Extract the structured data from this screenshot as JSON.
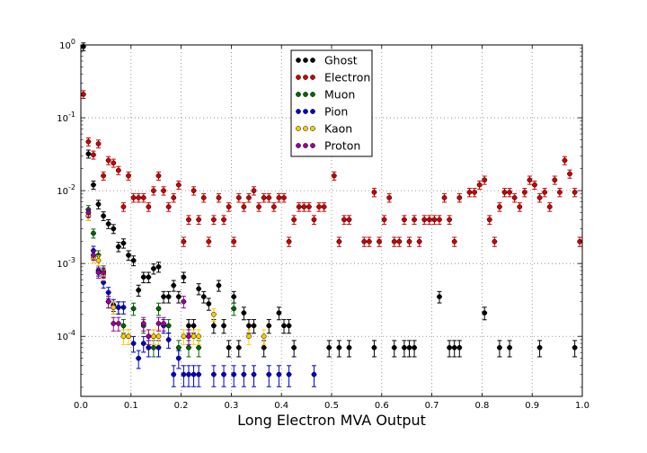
{
  "chart_data": {
    "type": "scatter",
    "title": "",
    "xlabel": "Long Electron MVA Output",
    "ylabel": "",
    "xlim": [
      0.0,
      1.0
    ],
    "ylim": [
      1.5e-05,
      1.0
    ],
    "yscale": "log",
    "grid": true,
    "legend_position": "top-center",
    "x_ticks": [
      "0.0",
      "0.1",
      "0.2",
      "0.3",
      "0.4",
      "0.5",
      "0.6",
      "0.7",
      "0.8",
      "0.9",
      "1.0"
    ],
    "y_ticks": [
      {
        "base": "10",
        "exp": "0",
        "value": 1
      },
      {
        "base": "10",
        "exp": "-1",
        "value": 0.1
      },
      {
        "base": "10",
        "exp": "-2",
        "value": 0.01
      },
      {
        "base": "10",
        "exp": "-3",
        "value": 0.001
      },
      {
        "base": "10",
        "exp": "-4",
        "value": 0.0001
      }
    ],
    "series": [
      {
        "name": "Ghost",
        "color": "#000000",
        "points": [
          [
            0.005,
            0.95
          ],
          [
            0.015,
            0.032
          ],
          [
            0.025,
            0.012
          ],
          [
            0.035,
            0.0065
          ],
          [
            0.045,
            0.0045
          ],
          [
            0.055,
            0.0035
          ],
          [
            0.065,
            0.003
          ],
          [
            0.075,
            0.0017
          ],
          [
            0.085,
            0.0019
          ],
          [
            0.095,
            0.0013
          ],
          [
            0.105,
            0.0011
          ],
          [
            0.115,
            0.00043
          ],
          [
            0.125,
            0.00065
          ],
          [
            0.135,
            0.00065
          ],
          [
            0.145,
            0.00085
          ],
          [
            0.155,
            0.0009
          ],
          [
            0.165,
            0.00035
          ],
          [
            0.175,
            0.00035
          ],
          [
            0.185,
            0.0005
          ],
          [
            0.195,
            0.00035
          ],
          [
            0.205,
            0.00065
          ],
          [
            0.215,
            0.00014
          ],
          [
            0.225,
            0.00014
          ],
          [
            0.235,
            0.00045
          ],
          [
            0.245,
            0.00035
          ],
          [
            0.255,
            0.00028
          ],
          [
            0.265,
            0.00014
          ],
          [
            0.275,
            0.0005
          ],
          [
            0.285,
            0.00014
          ],
          [
            0.295,
            7e-05
          ],
          [
            0.305,
            0.00035
          ],
          [
            0.315,
            7e-05
          ],
          [
            0.325,
            0.00021
          ],
          [
            0.335,
            0.00014
          ],
          [
            0.345,
            0.00014
          ],
          [
            0.365,
            7e-05
          ],
          [
            0.375,
            0.00014
          ],
          [
            0.395,
            0.00021
          ],
          [
            0.405,
            0.00014
          ],
          [
            0.415,
            0.00014
          ],
          [
            0.425,
            7e-05
          ],
          [
            0.495,
            7e-05
          ],
          [
            0.515,
            7e-05
          ],
          [
            0.535,
            7e-05
          ],
          [
            0.585,
            7e-05
          ],
          [
            0.625,
            7e-05
          ],
          [
            0.645,
            7e-05
          ],
          [
            0.655,
            7e-05
          ],
          [
            0.665,
            7e-05
          ],
          [
            0.715,
            0.00035
          ],
          [
            0.735,
            7e-05
          ],
          [
            0.745,
            7e-05
          ],
          [
            0.755,
            7e-05
          ],
          [
            0.805,
            0.00021
          ],
          [
            0.835,
            7e-05
          ],
          [
            0.855,
            7e-05
          ],
          [
            0.915,
            7e-05
          ],
          [
            0.985,
            7e-05
          ]
        ]
      },
      {
        "name": "Electron",
        "color": "#cc0000",
        "points": [
          [
            0.005,
            0.21
          ],
          [
            0.015,
            0.047
          ],
          [
            0.025,
            0.031
          ],
          [
            0.035,
            0.044
          ],
          [
            0.045,
            0.016
          ],
          [
            0.055,
            0.026
          ],
          [
            0.065,
            0.024
          ],
          [
            0.075,
            0.019
          ],
          [
            0.085,
            0.006
          ],
          [
            0.095,
            0.016
          ],
          [
            0.105,
            0.008
          ],
          [
            0.115,
            0.008
          ],
          [
            0.125,
            0.008
          ],
          [
            0.135,
            0.006
          ],
          [
            0.145,
            0.01
          ],
          [
            0.155,
            0.016
          ],
          [
            0.165,
            0.01
          ],
          [
            0.175,
            0.006
          ],
          [
            0.185,
            0.008
          ],
          [
            0.195,
            0.012
          ],
          [
            0.205,
            0.002
          ],
          [
            0.215,
            0.004
          ],
          [
            0.225,
            0.01
          ],
          [
            0.235,
            0.004
          ],
          [
            0.245,
            0.008
          ],
          [
            0.255,
            0.002
          ],
          [
            0.265,
            0.004
          ],
          [
            0.275,
            0.008
          ],
          [
            0.285,
            0.004
          ],
          [
            0.295,
            0.006
          ],
          [
            0.305,
            0.002
          ],
          [
            0.315,
            0.008
          ],
          [
            0.325,
            0.006
          ],
          [
            0.335,
            0.008
          ],
          [
            0.345,
            0.01
          ],
          [
            0.355,
            0.006
          ],
          [
            0.365,
            0.008
          ],
          [
            0.375,
            0.008
          ],
          [
            0.385,
            0.006
          ],
          [
            0.395,
            0.008
          ],
          [
            0.405,
            0.008
          ],
          [
            0.415,
            0.002
          ],
          [
            0.425,
            0.004
          ],
          [
            0.435,
            0.006
          ],
          [
            0.445,
            0.006
          ],
          [
            0.455,
            0.006
          ],
          [
            0.465,
            0.004
          ],
          [
            0.475,
            0.006
          ],
          [
            0.485,
            0.006
          ],
          [
            0.505,
            0.016
          ],
          [
            0.515,
            0.002
          ],
          [
            0.525,
            0.004
          ],
          [
            0.535,
            0.004
          ],
          [
            0.565,
            0.002
          ],
          [
            0.575,
            0.002
          ],
          [
            0.585,
            0.0095
          ],
          [
            0.595,
            0.002
          ],
          [
            0.605,
            0.004
          ],
          [
            0.615,
            0.008
          ],
          [
            0.625,
            0.002
          ],
          [
            0.635,
            0.002
          ],
          [
            0.645,
            0.004
          ],
          [
            0.655,
            0.002
          ],
          [
            0.665,
            0.004
          ],
          [
            0.675,
            0.002
          ],
          [
            0.685,
            0.004
          ],
          [
            0.695,
            0.004
          ],
          [
            0.705,
            0.004
          ],
          [
            0.715,
            0.004
          ],
          [
            0.725,
            0.008
          ],
          [
            0.735,
            0.004
          ],
          [
            0.745,
            0.002
          ],
          [
            0.755,
            0.008
          ],
          [
            0.775,
            0.0095
          ],
          [
            0.785,
            0.0095
          ],
          [
            0.795,
            0.012
          ],
          [
            0.805,
            0.014
          ],
          [
            0.815,
            0.004
          ],
          [
            0.825,
            0.002
          ],
          [
            0.835,
            0.006
          ],
          [
            0.845,
            0.0095
          ],
          [
            0.855,
            0.0095
          ],
          [
            0.865,
            0.008
          ],
          [
            0.875,
            0.006
          ],
          [
            0.885,
            0.0095
          ],
          [
            0.895,
            0.014
          ],
          [
            0.905,
            0.012
          ],
          [
            0.915,
            0.008
          ],
          [
            0.925,
            0.0095
          ],
          [
            0.935,
            0.006
          ],
          [
            0.945,
            0.014
          ],
          [
            0.955,
            0.0095
          ],
          [
            0.965,
            0.026
          ],
          [
            0.975,
            0.017
          ],
          [
            0.985,
            0.0095
          ],
          [
            0.995,
            0.002
          ]
        ]
      },
      {
        "name": "Muon",
        "color": "#006600",
        "points": [
          [
            0.015,
            0.0055
          ],
          [
            0.025,
            0.0026
          ],
          [
            0.035,
            0.0013
          ],
          [
            0.045,
            0.0008
          ],
          [
            0.055,
            0.0003
          ],
          [
            0.065,
            0.00025
          ],
          [
            0.075,
            0.00025
          ],
          [
            0.085,
            0.00014
          ],
          [
            0.105,
            0.00024
          ],
          [
            0.125,
            0.00014
          ],
          [
            0.145,
            7e-05
          ],
          [
            0.155,
            0.00024
          ],
          [
            0.175,
            0.00014
          ],
          [
            0.195,
            7e-05
          ],
          [
            0.215,
            7e-05
          ],
          [
            0.235,
            7e-05
          ],
          [
            0.305,
            0.00024
          ]
        ]
      },
      {
        "name": "Pion",
        "color": "#0000cc",
        "points": [
          [
            0.015,
            0.0045
          ],
          [
            0.025,
            0.0015
          ],
          [
            0.035,
            0.0008
          ],
          [
            0.045,
            0.00055
          ],
          [
            0.055,
            0.0004
          ],
          [
            0.065,
            0.00027
          ],
          [
            0.075,
            0.00025
          ],
          [
            0.085,
            0.00025
          ],
          [
            0.095,
            0.0001
          ],
          [
            0.105,
            8e-05
          ],
          [
            0.115,
            5e-05
          ],
          [
            0.125,
            8e-05
          ],
          [
            0.135,
            7e-05
          ],
          [
            0.145,
            0.0001
          ],
          [
            0.155,
            7e-05
          ],
          [
            0.165,
            0.00014
          ],
          [
            0.175,
            9e-05
          ],
          [
            0.185,
            3e-05
          ],
          [
            0.195,
            5e-05
          ],
          [
            0.205,
            3e-05
          ],
          [
            0.215,
            3e-05
          ],
          [
            0.225,
            3e-05
          ],
          [
            0.235,
            3e-05
          ],
          [
            0.265,
            3e-05
          ],
          [
            0.285,
            3e-05
          ],
          [
            0.305,
            3e-05
          ],
          [
            0.325,
            3e-05
          ],
          [
            0.345,
            3e-05
          ],
          [
            0.375,
            3e-05
          ],
          [
            0.395,
            3e-05
          ],
          [
            0.415,
            3e-05
          ],
          [
            0.465,
            3e-05
          ]
        ]
      },
      {
        "name": "Kaon",
        "color": "#ffcc00",
        "points": [
          [
            0.015,
            0.0045
          ],
          [
            0.025,
            0.0012
          ],
          [
            0.035,
            0.0011
          ],
          [
            0.045,
            0.0007
          ],
          [
            0.055,
            0.0003
          ],
          [
            0.065,
            0.00025
          ],
          [
            0.085,
            0.0001
          ],
          [
            0.095,
            0.0001
          ],
          [
            0.135,
            0.0001
          ],
          [
            0.145,
            0.0001
          ],
          [
            0.155,
            0.0001
          ],
          [
            0.205,
            0.0001
          ],
          [
            0.225,
            0.0001
          ],
          [
            0.235,
            0.0001
          ],
          [
            0.265,
            0.0002
          ],
          [
            0.335,
            0.0001
          ],
          [
            0.365,
            0.0001
          ]
        ]
      },
      {
        "name": "Proton",
        "color": "#990099",
        "points": [
          [
            0.015,
            0.005
          ],
          [
            0.025,
            0.0013
          ],
          [
            0.035,
            0.00075
          ],
          [
            0.045,
            0.00075
          ],
          [
            0.055,
            0.0003
          ],
          [
            0.065,
            0.00015
          ],
          [
            0.075,
            0.00015
          ],
          [
            0.125,
            0.00015
          ],
          [
            0.135,
            0.0001
          ],
          [
            0.155,
            0.00015
          ],
          [
            0.165,
            0.00015
          ],
          [
            0.205,
            0.0003
          ],
          [
            0.215,
            0.0001
          ]
        ]
      }
    ]
  }
}
